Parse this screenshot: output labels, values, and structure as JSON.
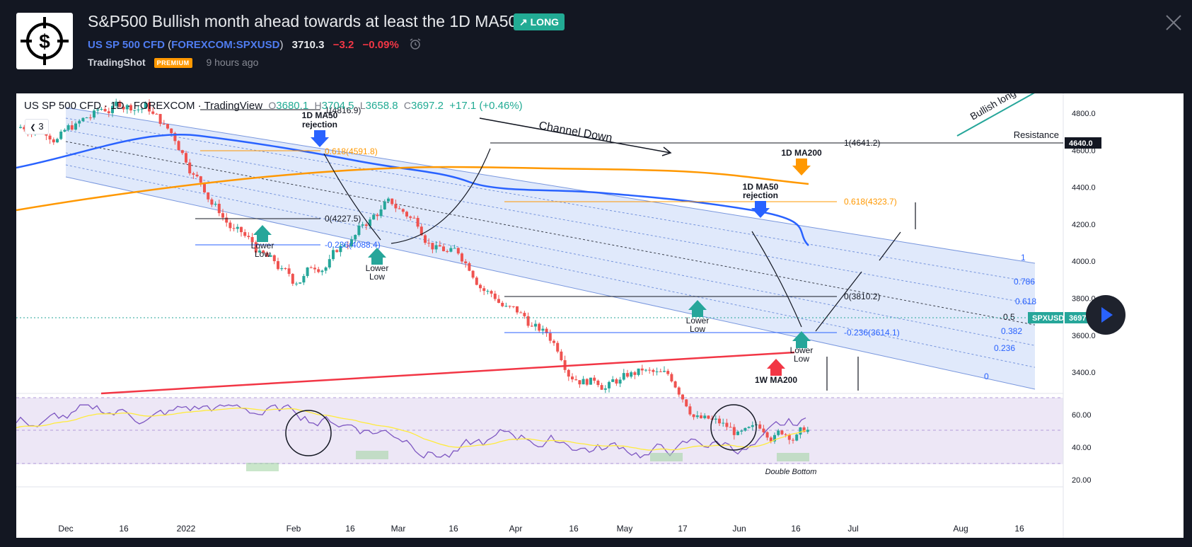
{
  "header": {
    "title": "S&P500 Bullish month ahead towards at least the 1D MA50",
    "badge": "LONG",
    "symbol_name": "US SP 500 CFD",
    "symbol_open_paren": "(",
    "symbol_code": "FOREXCOM:SPXUSD",
    "symbol_close_paren": ")",
    "price": "3710.3",
    "change": "−3.2",
    "change_pct": "−0.09%",
    "author": "TradingShot",
    "premium": "PREMIUM",
    "time": "9 hours ago"
  },
  "legend": {
    "name": "US SP 500 CFD · 1D · FOREXCOM · TradingView",
    "o_label": "O",
    "o": "3680.1",
    "h_label": "H",
    "h": "3704.5",
    "l_label": "L",
    "l": "3658.8",
    "c_label": "C",
    "c": "3697.2",
    "chg": "+17.1 (+0.46%)",
    "collapse": "3"
  },
  "colors": {
    "up": "#26a69a",
    "down": "#ef5350",
    "ma50": "#2962ff",
    "ma200": "#ff9800",
    "wma200": "#f23645",
    "rsi": "#7e57c2",
    "rsi_ma": "#ffeb3b",
    "channel": "#c7d7f8"
  },
  "annotations": {
    "ma50_rej_1a": "1D MA50",
    "ma50_rej_1b": "rejection",
    "ma50_rej_2a": "1D MA50",
    "ma50_rej_2b": "rejection",
    "ma200_label": "1D MA200",
    "channel_down": "Channel Down",
    "lower": "Lower",
    "low": "Low",
    "wma200_label": "1W MA200",
    "bullish": "Bullish long-te",
    "resistance": "Resistance",
    "double_bottom": "Double Bottom"
  },
  "fib": {
    "f1": "1(4816.9)",
    "f618a": "0.618(4591.8)",
    "f0a": "0(4227.5)",
    "f236a": "-0.236(4088.4)",
    "f1b": "1(4641.2)",
    "f618b": "0.618(4323.7)",
    "f0b": "0(3810.2)",
    "f236b": "-0.236(3614.1)"
  },
  "channel_fib": {
    "c1": "1",
    "c786": "0.786",
    "c618": "0.618",
    "c5": "0.5",
    "c382": "0.382",
    "c236": "0.236",
    "c0": "0"
  },
  "price_axis": {
    "ticks": [
      "4800.0",
      "4600.0",
      "4400.0",
      "4200.0",
      "4000.0",
      "3800.0",
      "3600.0",
      "3400.0"
    ],
    "resistance_value": "4640.0",
    "current_symbol": "SPXUSD",
    "current_value": "3697.2"
  },
  "rsi_axis": {
    "ticks": [
      "60.00",
      "40.00",
      "20.00"
    ]
  },
  "time_axis": {
    "labels": [
      "Dec",
      "16",
      "2022",
      "Feb",
      "16",
      "Mar",
      "16",
      "Apr",
      "16",
      "May",
      "17",
      "Jun",
      "16",
      "Jul",
      "Aug",
      "16"
    ]
  },
  "chart_data": {
    "type": "candlestick",
    "title": "US SP 500 CFD · 1D · FOREXCOM",
    "ylim": [
      3290,
      4900
    ],
    "rsi_ylim": [
      20,
      70
    ],
    "indicators": [
      "1D MA50",
      "1D MA200",
      "1W MA200",
      "RSI"
    ],
    "key_levels": {
      "resistance": 4640.0,
      "fib_set_1": {
        "1": 4816.9,
        "0.618": 4591.8,
        "0": 4227.5,
        "-0.236": 4088.4
      },
      "fib_set_2": {
        "1": 4641.2,
        "0.618": 4323.7,
        "0": 3810.2,
        "-0.236": 3614.1
      },
      "last": 3697.2
    }
  }
}
